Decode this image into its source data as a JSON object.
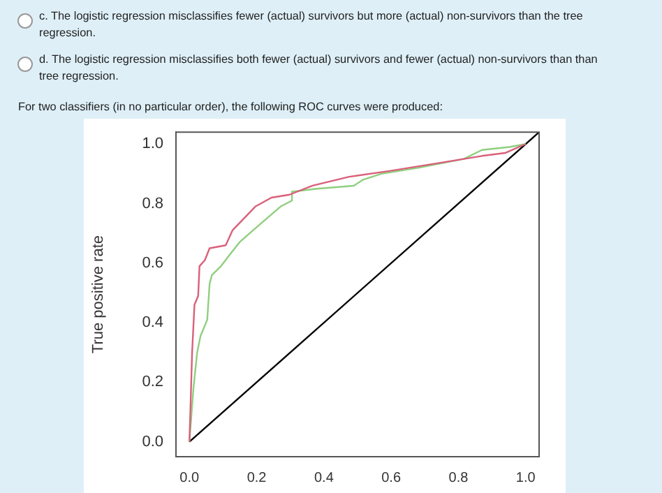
{
  "chart_data": {
    "type": "line",
    "ylabel": "True positive rate",
    "annotations": [
      "c. The logistic regression misclassifies fewer (actual) survivors but more (actual) non-survivors than the tree regression.",
      "d. The logistic regression misclassifies both fewer (actual) survivors and fewer (actual) non-survivors than than tree regression.",
      "For two classifiers (in no particular order), the following ROC curves were produced:"
    ],
    "xlim": [
      -0.04,
      1.04
    ],
    "ylim": [
      -0.05,
      1.04
    ],
    "yticks": [
      {
        "value": 0,
        "label": "0.0"
      },
      {
        "value": 0.2,
        "label": "0.2"
      },
      {
        "value": 0.4,
        "label": "0.4"
      },
      {
        "value": 0.6,
        "label": "0.6"
      },
      {
        "value": 0.8,
        "label": "0.8"
      },
      {
        "value": 1,
        "label": "1.0"
      }
    ],
    "xticks": [
      {
        "value": 0,
        "label": "0.0"
      },
      {
        "value": 0.2,
        "label": "0.2"
      },
      {
        "value": 0.4,
        "label": "0.4"
      },
      {
        "value": 0.6,
        "label": "0.6"
      },
      {
        "value": 0.8,
        "label": "0.8"
      },
      {
        "value": 1,
        "label": "1.0"
      }
    ],
    "grid": false,
    "legend": false,
    "marker": "none",
    "line_style": "solid",
    "series": [
      {
        "color": "#d9607a",
        "x": [
          0,
          0.003,
          0.008,
          0.015,
          0.026,
          0.03,
          0.046,
          0.06,
          0.108,
          0.128,
          0.162,
          0.196,
          0.244,
          0.298,
          0.366,
          0.475,
          0.598,
          0.762,
          0.87,
          0.939,
          0.959,
          1
        ],
        "values": [
          0,
          0.11,
          0.3,
          0.46,
          0.49,
          0.59,
          0.61,
          0.65,
          0.66,
          0.71,
          0.75,
          0.79,
          0.82,
          0.83,
          0.86,
          0.89,
          0.91,
          0.94,
          0.96,
          0.97,
          0.98,
          1
        ]
      },
      {
        "color": "#8fcf7f",
        "x": [
          0,
          0.012,
          0.023,
          0.033,
          0.053,
          0.06,
          0.067,
          0.094,
          0.121,
          0.149,
          0.189,
          0.23,
          0.271,
          0.305,
          0.305,
          0.38,
          0.489,
          0.516,
          0.571,
          0.68,
          0.816,
          0.87,
          0.952,
          1
        ],
        "values": [
          0,
          0.18,
          0.3,
          0.355,
          0.41,
          0.53,
          0.56,
          0.59,
          0.63,
          0.67,
          0.71,
          0.75,
          0.79,
          0.81,
          0.84,
          0.85,
          0.86,
          0.88,
          0.9,
          0.92,
          0.95,
          0.98,
          0.99,
          1
        ]
      },
      {
        "color": "#000000",
        "x": [
          0,
          1.04
        ],
        "values": [
          0,
          1.04
        ]
      }
    ]
  }
}
